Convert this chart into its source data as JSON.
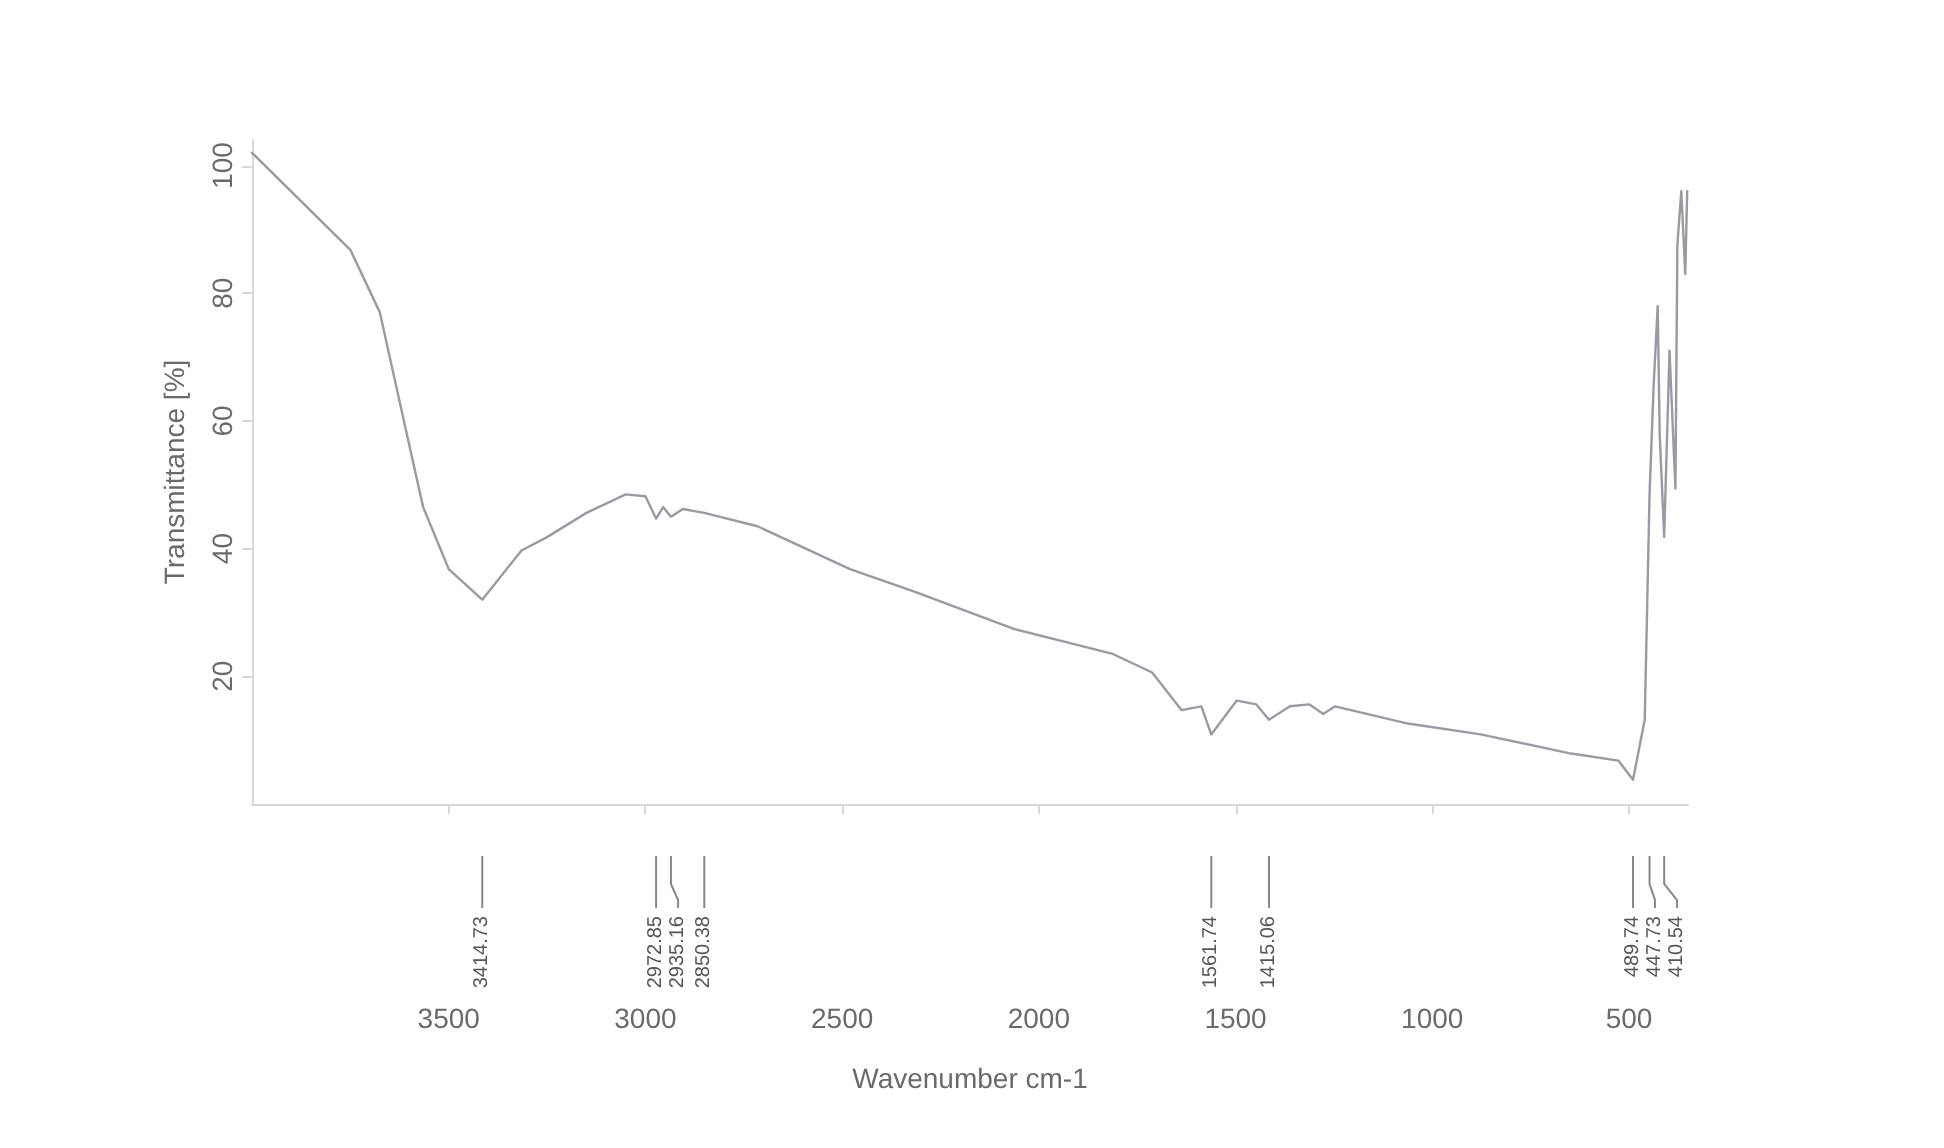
{
  "chart_data": {
    "type": "line",
    "xlabel": "Wavenumber cm-1",
    "ylabel": "Transmittance [%]",
    "xlim": [
      4000,
      350
    ],
    "ylim": [
      0,
      104
    ],
    "xticks": [
      3500,
      3000,
      2500,
      2000,
      1500,
      1000,
      500
    ],
    "yticks": [
      20,
      40,
      60,
      80,
      100
    ],
    "grid": false,
    "marker": "none",
    "line_style": "solid",
    "series": [
      {
        "color": "#9a9aa4",
        "x": [
          4000,
          3750,
          3675,
          3615,
          3565,
          3500,
          3414.73,
          3315,
          3250,
          3150,
          3050,
          3000,
          2972.85,
          2955,
          2935.16,
          2905,
          2850.38,
          2715,
          2480,
          2313,
          2062,
          1812,
          1712,
          1637,
          1587,
          1561.74,
          1497,
          1447,
          1415.06,
          1362,
          1312,
          1277,
          1247,
          1062,
          877,
          647,
          527,
          489.74,
          460,
          447.73,
          437,
          427,
          422,
          410.54,
          397,
          382,
          377,
          367,
          357,
          352
        ],
        "values": [
          102,
          86.8,
          77,
          60.3,
          46.5,
          36.8,
          32,
          39.7,
          41.8,
          45.6,
          48.5,
          48.2,
          44.7,
          46.5,
          45,
          46.2,
          45.6,
          43.5,
          36.8,
          33.2,
          27.4,
          23.5,
          20.6,
          14.7,
          15.3,
          10.9,
          16.2,
          15.6,
          13.2,
          15.3,
          15.6,
          14.1,
          15.3,
          12.6,
          10.9,
          7.9,
          6.8,
          3.8,
          13.2,
          48.5,
          66,
          78,
          58,
          41.8,
          71,
          49.4,
          87.6,
          96,
          83,
          96
        ]
      }
    ],
    "annotations": [
      {
        "text": "3414.73",
        "x": 3414.73
      },
      {
        "text": "2972.85",
        "x": 2972.85
      },
      {
        "text": "2935.16",
        "x": 2935.16
      },
      {
        "text": "2850.38",
        "x": 2850.38
      },
      {
        "text": "1561.74",
        "x": 1561.74
      },
      {
        "text": "1415.06",
        "x": 1415.06
      },
      {
        "text": "489.74",
        "x": 489.74
      },
      {
        "text": "447.73",
        "x": 447.73
      },
      {
        "text": "410.54",
        "x": 410.54
      }
    ]
  }
}
